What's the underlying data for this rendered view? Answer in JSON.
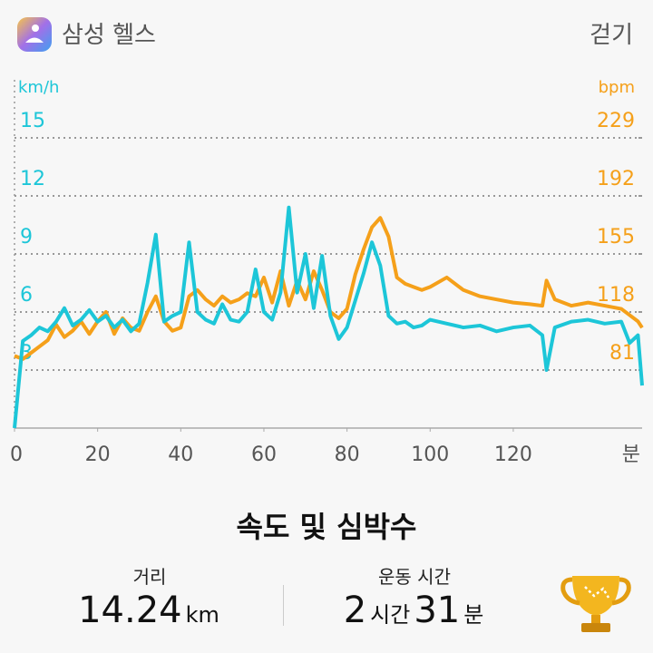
{
  "header": {
    "app_name": "삼성 헬스",
    "activity": "걷기"
  },
  "chart_data": {
    "type": "line",
    "x": [
      0,
      2,
      4,
      6,
      8,
      10,
      12,
      14,
      16,
      18,
      20,
      22,
      24,
      26,
      28,
      30,
      32,
      34,
      36,
      38,
      40,
      42,
      44,
      46,
      48,
      50,
      52,
      54,
      56,
      58,
      60,
      62,
      64,
      66,
      68,
      70,
      72,
      74,
      76,
      78,
      80,
      82,
      84,
      86,
      88,
      90,
      92,
      94,
      96,
      98,
      100,
      104,
      108,
      112,
      116,
      120,
      124,
      127,
      128,
      130,
      134,
      138,
      142,
      146,
      148,
      150,
      151
    ],
    "xlim": [
      0,
      151
    ],
    "xticks": [
      0,
      20,
      40,
      60,
      80,
      100,
      120
    ],
    "xlabel": "분",
    "ylabel": "km/h",
    "ylim": [
      0,
      18
    ],
    "yticks": [
      3,
      6,
      9,
      12,
      15
    ],
    "y2label": "bpm",
    "y2lim": [
      44,
      266
    ],
    "y2ticks": [
      81,
      118,
      155,
      192,
      229
    ],
    "grid": true,
    "series": [
      {
        "color": "#1dc6d8",
        "values": [
          0,
          4.5,
          4.8,
          5.2,
          5,
          5.5,
          6.2,
          5.3,
          5.6,
          6.1,
          5.5,
          5.8,
          5.2,
          5.6,
          5,
          5.4,
          7.5,
          10,
          5.5,
          5.8,
          6,
          9.6,
          6,
          5.6,
          5.4,
          6.4,
          5.6,
          5.5,
          6,
          8.2,
          6,
          5.6,
          7,
          11.4,
          7,
          9,
          6.2,
          8.9,
          5.8,
          4.6,
          5.2,
          6.6,
          8,
          9.6,
          8.4,
          5.8,
          5.4,
          5.5,
          5.2,
          5.3,
          5.6,
          5.4,
          5.2,
          5.3,
          5,
          5.2,
          5.3,
          4.8,
          3,
          5.2,
          5.5,
          5.6,
          5.4,
          5.5,
          4.4,
          4.8,
          2.2
        ]
      },
      {
        "color": "#f5a01a",
        "axis": "y2",
        "values": [
          90,
          88,
          92,
          96,
          100,
          110,
          102,
          106,
          112,
          104,
          112,
          118,
          104,
          114,
          108,
          106,
          118,
          128,
          112,
          106,
          108,
          128,
          132,
          126,
          122,
          128,
          124,
          126,
          130,
          128,
          140,
          124,
          144,
          122,
          138,
          126,
          144,
          132,
          118,
          114,
          120,
          142,
          158,
          172,
          178,
          166,
          140,
          136,
          134,
          132,
          134,
          140,
          132,
          128,
          126,
          124,
          123,
          122,
          138,
          126,
          122,
          124,
          122,
          120,
          116,
          112,
          108
        ]
      }
    ]
  },
  "summary": {
    "title": "속도 및 심박수",
    "distance": {
      "label": "거리",
      "value": "14.24",
      "unit": "km"
    },
    "duration": {
      "label": "운동 시간",
      "hours": "2",
      "hours_unit": "시간",
      "minutes": "31",
      "minutes_unit": "분"
    }
  }
}
